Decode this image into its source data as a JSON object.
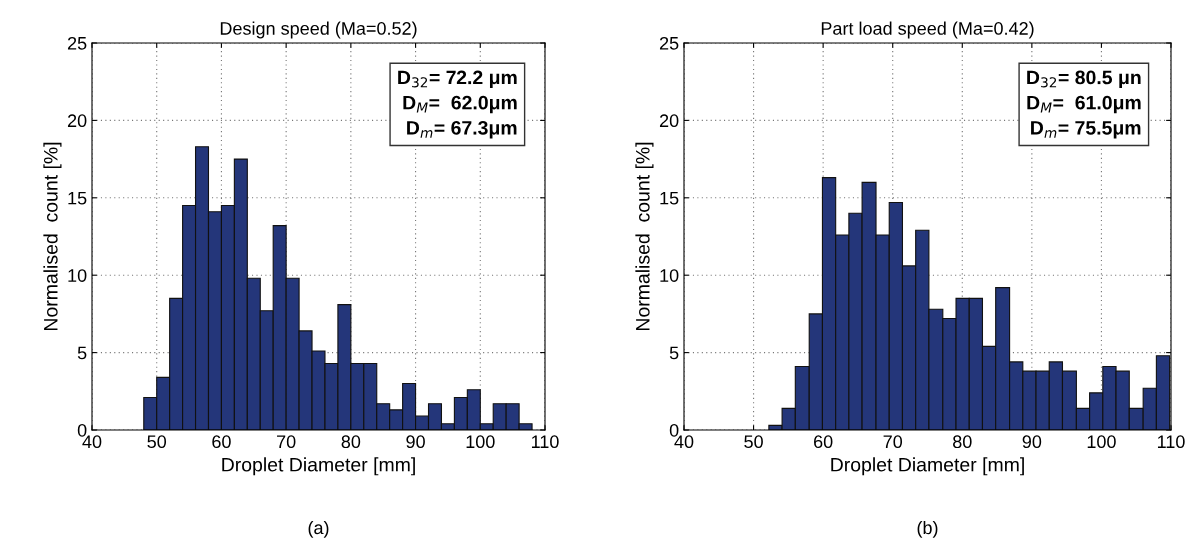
{
  "chart_data": [
    {
      "type": "histogram",
      "title": "Design speed (Ma=0.52)",
      "xlabel": "Droplet Diameter [mm]",
      "ylabel": "Normalised  count [%]",
      "color": "#24367a",
      "bins": [
        48,
        50,
        52,
        54,
        56,
        58,
        60,
        62,
        64,
        66,
        68,
        70,
        72,
        74,
        76,
        78,
        80,
        82,
        84,
        86,
        88,
        90,
        92,
        94,
        96,
        98,
        100,
        102,
        104,
        106,
        108
      ],
      "values": [
        2.1,
        3.4,
        8.5,
        14.5,
        18.3,
        14.1,
        14.5,
        17.5,
        9.8,
        7.7,
        13.2,
        9.8,
        6.4,
        5.1,
        4.3,
        8.1,
        4.3,
        4.3,
        1.7,
        1.3,
        3.0,
        0.9,
        1.7,
        0.4,
        2.1,
        2.6,
        0.4,
        1.7,
        1.7,
        0.4
      ],
      "xlim": [
        40,
        110
      ],
      "xticks": [
        40,
        50,
        60,
        70,
        80,
        90,
        100,
        110
      ],
      "ylim": [
        0,
        25
      ],
      "yticks": [
        0,
        5,
        10,
        15,
        20,
        25
      ],
      "grid": true,
      "annotations": [
        "D$_{32}$= 72.2 μm\nD$_{M}$=  62.0μm\nD$_{m}$= 67.3μm",
        "(a)"
      ]
    },
    {
      "type": "histogram",
      "title": "Part load speed (Ma=0.42)",
      "xlabel": "Droplet Diameter [mm]",
      "ylabel": "Normalised  count [%]",
      "color": "#24367a",
      "bins": [
        52.2,
        54.1,
        56.0,
        58.0,
        59.9,
        61.8,
        63.7,
        65.6,
        67.6,
        69.5,
        71.4,
        73.3,
        75.2,
        77.2,
        79.1,
        81.0,
        82.9,
        84.8,
        86.8,
        88.7,
        90.6,
        92.5,
        94.4,
        96.4,
        98.3,
        100.2,
        102.1,
        104.0,
        106.0,
        107.9,
        109.8
      ],
      "values": [
        0.3,
        1.4,
        4.1,
        7.5,
        16.3,
        12.6,
        14.0,
        16.0,
        12.6,
        14.7,
        10.6,
        12.9,
        7.8,
        7.2,
        8.5,
        8.5,
        5.4,
        9.2,
        4.4,
        3.8,
        3.8,
        4.4,
        3.8,
        1.4,
        2.4,
        4.1,
        3.8,
        1.4,
        2.7,
        4.8
      ],
      "xlim": [
        40,
        110
      ],
      "xticks": [
        40,
        50,
        60,
        70,
        80,
        90,
        100,
        110
      ],
      "ylim": [
        0,
        25
      ],
      "yticks": [
        0,
        5,
        10,
        15,
        20,
        25
      ],
      "grid": true,
      "annotations": [
        "D$_{32}$= 80.5 μn\nD$_{M}$=  61.0μm\nD$_{m}$= 75.5μm",
        "(b)"
      ]
    }
  ]
}
